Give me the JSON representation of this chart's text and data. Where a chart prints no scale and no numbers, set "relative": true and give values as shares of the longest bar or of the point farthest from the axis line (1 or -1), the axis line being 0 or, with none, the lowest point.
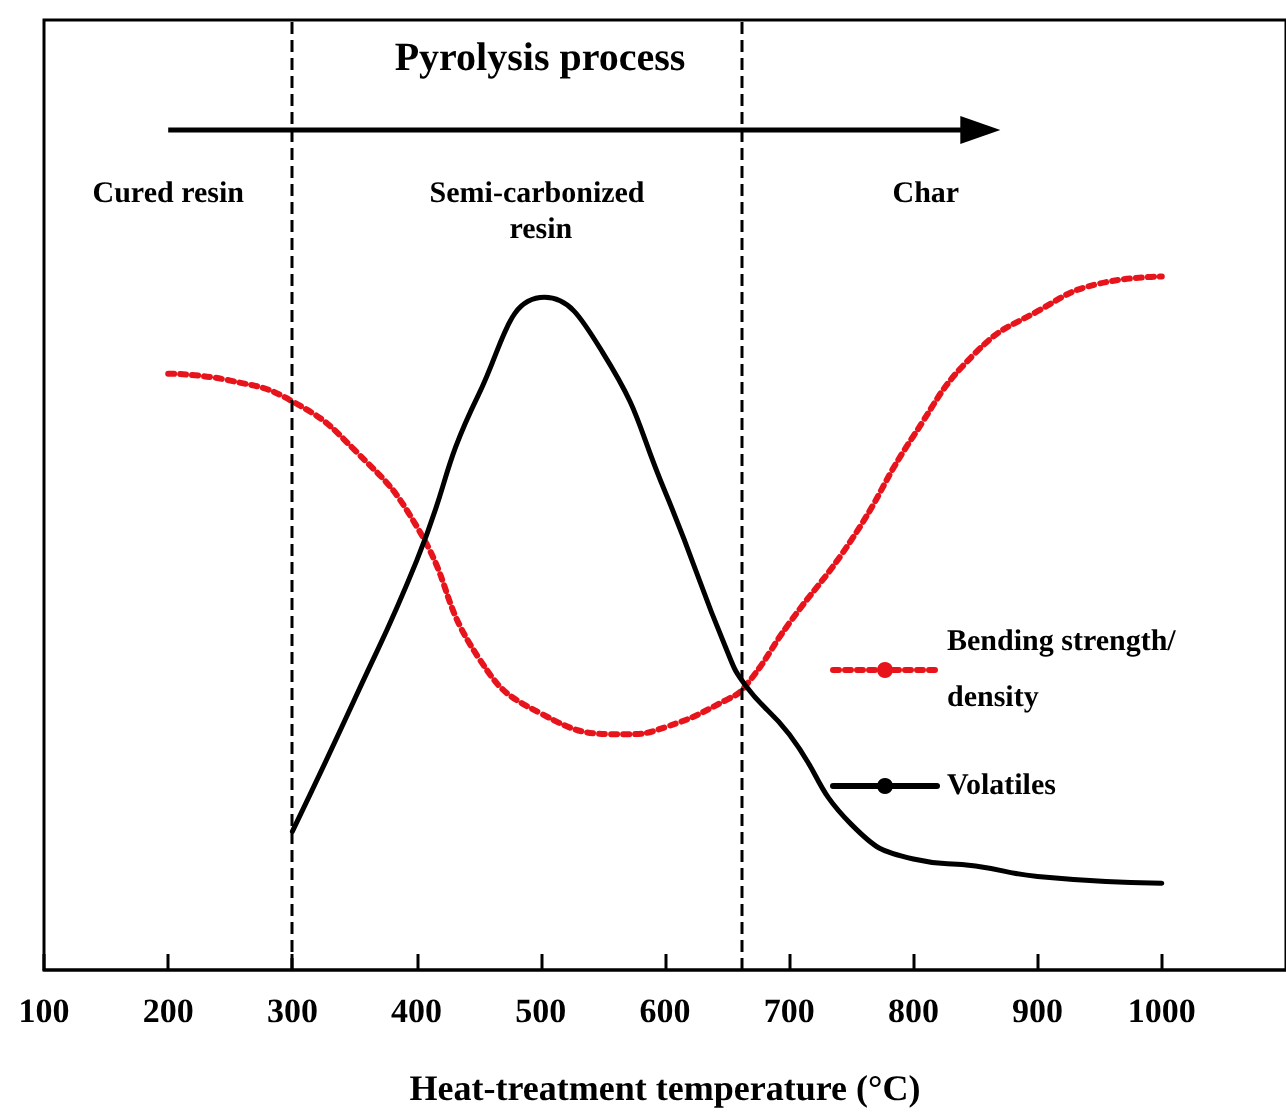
{
  "chart_data": {
    "type": "line",
    "title": "Pyrolysis process",
    "xlabel": "Heat-treatment temperature (°C)",
    "annotations": [
      "Cured resin",
      "Semi-carbonized resin",
      "Char"
    ],
    "relative": true,
    "xlim": [
      100,
      1100
    ],
    "xticks": [
      100,
      200,
      300,
      400,
      500,
      600,
      700,
      800,
      900,
      1000
    ],
    "series": [
      {
        "name": "Bending strength/density",
        "color": "#e8141c",
        "line_style": "dotted",
        "x": [
          200,
          250,
          300,
          350,
          400,
          450,
          500,
          567,
          600,
          650,
          665,
          700,
          750,
          800,
          850,
          900,
          950,
          1000
        ],
        "values": [
          0.86,
          0.85,
          0.82,
          0.75,
          0.64,
          0.45,
          0.37,
          0.34,
          0.35,
          0.39,
          0.41,
          0.5,
          0.62,
          0.77,
          0.89,
          0.95,
          0.99,
          1
        ]
      },
      {
        "name": "Volatiles",
        "color": "#000000",
        "line_style": "solid",
        "x": [
          300,
          350,
          400,
          450,
          503,
          550,
          600,
          650,
          665,
          700,
          750,
          800,
          850,
          900,
          1000
        ],
        "values": [
          0.2,
          0.39,
          0.59,
          0.83,
          0.97,
          0.89,
          0.69,
          0.46,
          0.41,
          0.34,
          0.21,
          0.16,
          0.15,
          0.135,
          0.125
        ]
      }
    ],
    "ref_lines": [
      {
        "axis": "x",
        "value": 300,
        "color": "#000000",
        "line_style": "dashed"
      },
      {
        "axis": "x",
        "value": 662,
        "color": "#000000",
        "line_style": "dashed"
      }
    ],
    "marker": "none",
    "legend": "right",
    "grid": false
  }
}
